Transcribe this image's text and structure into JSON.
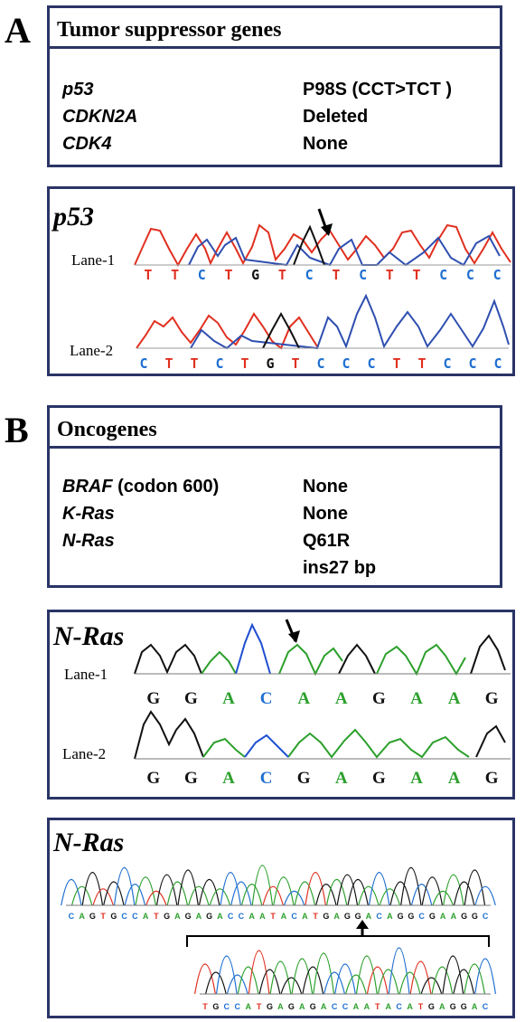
{
  "panel_a": {
    "letter": "A",
    "table": {
      "title": "Tumor suppressor genes",
      "rows": [
        {
          "gene": "p53",
          "value": "P98S  (CCT>TCT )"
        },
        {
          "gene": "CDKN2A",
          "value": "Deleted"
        },
        {
          "gene": "CDK4",
          "value": "None"
        }
      ]
    },
    "trace": {
      "title": "p53",
      "lanes": [
        {
          "label": "Lane-1",
          "bases": [
            "T",
            "T",
            "C",
            "T",
            "G",
            "T",
            "C",
            "T",
            "C",
            "T",
            "T",
            "C",
            "C",
            "C"
          ]
        },
        {
          "label": "Lane-2",
          "bases": [
            "C",
            "T",
            "T",
            "C",
            "T",
            "G",
            "T",
            "C",
            "C",
            "C",
            "T",
            "T",
            "C",
            "C",
            "C"
          ]
        }
      ]
    }
  },
  "panel_b": {
    "letter": "B",
    "table": {
      "title": "Oncogenes",
      "rows": [
        {
          "gene": "BRAF",
          "gene_suffix": " (codon 600)",
          "value": "None"
        },
        {
          "gene": "K-Ras",
          "gene_suffix": "",
          "value": "None"
        },
        {
          "gene": "N-Ras",
          "gene_suffix": "",
          "value": "Q61R"
        },
        {
          "gene": "",
          "gene_suffix": "",
          "value": "ins27 bp"
        }
      ]
    },
    "trace1": {
      "title": "N-Ras",
      "lanes": [
        {
          "label": "Lane-1",
          "bases": [
            "G",
            "G",
            "A",
            "C",
            "A",
            "A",
            "G",
            "A",
            "A",
            "G"
          ]
        },
        {
          "label": "Lane-2",
          "bases": [
            "G",
            "G",
            "A",
            "C",
            "G",
            "A",
            "G",
            "A",
            "A",
            "G"
          ]
        }
      ]
    },
    "trace2": {
      "title": "N-Ras",
      "top_sequence": "CAGTGCCATGAGAGACCAATACATGAGGACAGGCGAAGGC",
      "bottom_sequence": "TGCCATGAGAGACCAATACATGAGGAC"
    }
  },
  "base_colors": {
    "A": "#2ca02c",
    "C": "#1f6fd1",
    "G": "#111111",
    "T": "#e03020"
  }
}
